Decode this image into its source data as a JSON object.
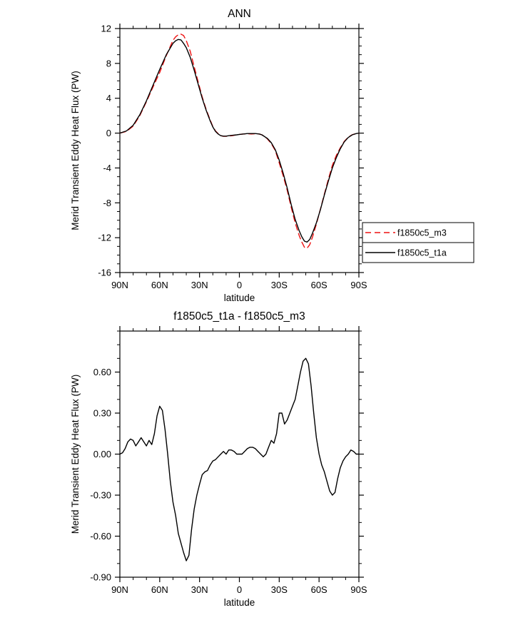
{
  "chart_data": [
    {
      "id": "top-chart",
      "type": "line",
      "title": "ANN",
      "xlabel": "latitude",
      "ylabel": "Merid Transient Eddy Heat Flux (PW)",
      "xlim": [
        90,
        -90
      ],
      "ylim": [
        -16,
        12
      ],
      "xminor_step": 10,
      "yminor_step": 1,
      "grid": false,
      "xticks": [
        {
          "v": 90,
          "label": "90N"
        },
        {
          "v": 60,
          "label": "60N"
        },
        {
          "v": 30,
          "label": "30N"
        },
        {
          "v": 0,
          "label": "0"
        },
        {
          "v": -30,
          "label": "30S"
        },
        {
          "v": -60,
          "label": "60S"
        },
        {
          "v": -90,
          "label": "90S"
        }
      ],
      "yticks": [
        {
          "v": 12,
          "label": "12"
        },
        {
          "v": 8,
          "label": "8"
        },
        {
          "v": 4,
          "label": "4"
        },
        {
          "v": 0,
          "label": "0"
        },
        {
          "v": -4,
          "label": "-4"
        },
        {
          "v": -8,
          "label": "-8"
        },
        {
          "v": -12,
          "label": "-12"
        },
        {
          "v": -16,
          "label": "-16"
        }
      ],
      "series": [
        {
          "name": "f1850c5_m3",
          "color": "#ee1111",
          "dash": "8 5",
          "points": [
            [
              90,
              0.0
            ],
            [
              85,
              0.2
            ],
            [
              80,
              0.8
            ],
            [
              75,
              2.0
            ],
            [
              70,
              3.6
            ],
            [
              65,
              5.3
            ],
            [
              60,
              6.95
            ],
            [
              55,
              8.9
            ],
            [
              50,
              10.65
            ],
            [
              48,
              11.05
            ],
            [
              46,
              11.3
            ],
            [
              44,
              11.35
            ],
            [
              42,
              11.2
            ],
            [
              40,
              10.6
            ],
            [
              37,
              9.4
            ],
            [
              34,
              7.6
            ],
            [
              31,
              5.85
            ],
            [
              28,
              4.15
            ],
            [
              25,
              2.7
            ],
            [
              22,
              1.5
            ],
            [
              20,
              0.75
            ],
            [
              18,
              0.25
            ],
            [
              16,
              -0.05
            ],
            [
              14,
              -0.28
            ],
            [
              12,
              -0.37
            ],
            [
              10,
              -0.37
            ],
            [
              8,
              -0.33
            ],
            [
              5,
              -0.28
            ],
            [
              2,
              -0.2
            ],
            [
              0,
              -0.15
            ],
            [
              -3,
              -0.1
            ],
            [
              -6,
              -0.08
            ],
            [
              -9,
              -0.1
            ],
            [
              -12,
              -0.08
            ],
            [
              -15,
              -0.1
            ],
            [
              -17,
              -0.2
            ],
            [
              -19,
              -0.4
            ],
            [
              -21,
              -0.65
            ],
            [
              -24,
              -1.2
            ],
            [
              -27,
              -2.0
            ],
            [
              -30,
              -3.4
            ],
            [
              -33,
              -4.9
            ],
            [
              -36,
              -6.55
            ],
            [
              -39,
              -8.5
            ],
            [
              -42,
              -10.3
            ],
            [
              -45,
              -11.75
            ],
            [
              -47,
              -12.5
            ],
            [
              -49,
              -13.1
            ],
            [
              -51,
              -13.2
            ],
            [
              -53,
              -12.8
            ],
            [
              -55,
              -11.95
            ],
            [
              -58,
              -10.45
            ],
            [
              -61,
              -8.75
            ],
            [
              -64,
              -7.0
            ],
            [
              -67,
              -5.3
            ],
            [
              -70,
              -3.7
            ],
            [
              -73,
              -2.55
            ],
            [
              -76,
              -1.7
            ],
            [
              -79,
              -0.95
            ],
            [
              -82,
              -0.45
            ],
            [
              -85,
              -0.18
            ],
            [
              -88,
              -0.05
            ],
            [
              -90,
              0.0
            ]
          ]
        },
        {
          "name": "f1850c5_t1a",
          "color": "#000000",
          "dash": "",
          "points": [
            [
              90,
              0.0
            ],
            [
              85,
              0.25
            ],
            [
              80,
              0.9
            ],
            [
              75,
              2.1
            ],
            [
              70,
              3.7
            ],
            [
              65,
              5.5
            ],
            [
              60,
              7.3
            ],
            [
              55,
              9.0
            ],
            [
              50,
              10.3
            ],
            [
              48,
              10.6
            ],
            [
              46,
              10.75
            ],
            [
              44,
              10.7
            ],
            [
              42,
              10.3
            ],
            [
              40,
              9.8
            ],
            [
              37,
              8.7
            ],
            [
              34,
              7.2
            ],
            [
              31,
              5.6
            ],
            [
              28,
              4.0
            ],
            [
              25,
              2.6
            ],
            [
              22,
              1.4
            ],
            [
              20,
              0.7
            ],
            [
              18,
              0.2
            ],
            [
              16,
              -0.1
            ],
            [
              14,
              -0.3
            ],
            [
              12,
              -0.35
            ],
            [
              10,
              -0.35
            ],
            [
              8,
              -0.3
            ],
            [
              5,
              -0.25
            ],
            [
              2,
              -0.2
            ],
            [
              0,
              -0.15
            ],
            [
              -3,
              -0.1
            ],
            [
              -6,
              -0.05
            ],
            [
              -9,
              -0.05
            ],
            [
              -12,
              -0.05
            ],
            [
              -15,
              -0.1
            ],
            [
              -17,
              -0.2
            ],
            [
              -19,
              -0.4
            ],
            [
              -21,
              -0.6
            ],
            [
              -24,
              -1.1
            ],
            [
              -27,
              -1.9
            ],
            [
              -30,
              -3.1
            ],
            [
              -33,
              -4.6
            ],
            [
              -36,
              -6.3
            ],
            [
              -39,
              -8.2
            ],
            [
              -42,
              -9.9
            ],
            [
              -45,
              -11.2
            ],
            [
              -47,
              -11.9
            ],
            [
              -49,
              -12.4
            ],
            [
              -51,
              -12.5
            ],
            [
              -53,
              -12.2
            ],
            [
              -55,
              -11.5
            ],
            [
              -58,
              -10.3
            ],
            [
              -61,
              -8.8
            ],
            [
              -64,
              -7.1
            ],
            [
              -67,
              -5.5
            ],
            [
              -70,
              -4.0
            ],
            [
              -73,
              -2.8
            ],
            [
              -76,
              -1.8
            ],
            [
              -79,
              -1.0
            ],
            [
              -82,
              -0.5
            ],
            [
              -85,
              -0.2
            ],
            [
              -88,
              -0.05
            ],
            [
              -90,
              0.0
            ]
          ]
        }
      ],
      "legend": {
        "position": "right-below",
        "entries": [
          {
            "label": "f1850c5_m3",
            "color": "#ee1111",
            "dash": "8 5"
          },
          {
            "label": "f1850c5_t1a",
            "color": "#000000",
            "dash": ""
          }
        ]
      }
    },
    {
      "id": "bottom-chart",
      "type": "line",
      "title": "f1850c5_t1a - f1850c5_m3",
      "xlabel": "latitude",
      "ylabel": "Merid Transient Eddy Heat Flux (PW)",
      "xlim": [
        90,
        -90
      ],
      "ylim": [
        -0.9,
        0.9
      ],
      "xminor_step": 10,
      "yminor_step": 0.1,
      "grid": false,
      "xticks": [
        {
          "v": 90,
          "label": "90N"
        },
        {
          "v": 60,
          "label": "60N"
        },
        {
          "v": 30,
          "label": "30N"
        },
        {
          "v": 0,
          "label": "0"
        },
        {
          "v": -30,
          "label": "30S"
        },
        {
          "v": -60,
          "label": "60S"
        },
        {
          "v": -90,
          "label": "90S"
        }
      ],
      "yticks": [
        {
          "v": 0.6,
          "label": "0.60"
        },
        {
          "v": 0.3,
          "label": "0.30"
        },
        {
          "v": 0.0,
          "label": "0.00"
        },
        {
          "v": -0.3,
          "label": "-0.30"
        },
        {
          "v": -0.6,
          "label": "-0.60"
        },
        {
          "v": -0.9,
          "label": "-0.90"
        }
      ],
      "series": [
        {
          "name": "f1850c5_t1a - f1850c5_m3",
          "color": "#000000",
          "dash": "",
          "points": [
            [
              90,
              0.0
            ],
            [
              88,
              0.01
            ],
            [
              86,
              0.04
            ],
            [
              84,
              0.09
            ],
            [
              82,
              0.11
            ],
            [
              80,
              0.1
            ],
            [
              78,
              0.06
            ],
            [
              76,
              0.09
            ],
            [
              74,
              0.12
            ],
            [
              72,
              0.09
            ],
            [
              70,
              0.06
            ],
            [
              68,
              0.1
            ],
            [
              66,
              0.07
            ],
            [
              64,
              0.15
            ],
            [
              62,
              0.28
            ],
            [
              60,
              0.35
            ],
            [
              58,
              0.32
            ],
            [
              56,
              0.18
            ],
            [
              54,
              0.0
            ],
            [
              52,
              -0.2
            ],
            [
              50,
              -0.35
            ],
            [
              48,
              -0.45
            ],
            [
              46,
              -0.58
            ],
            [
              44,
              -0.65
            ],
            [
              42,
              -0.72
            ],
            [
              40,
              -0.78
            ],
            [
              38,
              -0.74
            ],
            [
              36,
              -0.55
            ],
            [
              34,
              -0.4
            ],
            [
              32,
              -0.3
            ],
            [
              30,
              -0.22
            ],
            [
              28,
              -0.15
            ],
            [
              26,
              -0.13
            ],
            [
              24,
              -0.12
            ],
            [
              22,
              -0.08
            ],
            [
              20,
              -0.05
            ],
            [
              18,
              -0.04
            ],
            [
              16,
              -0.02
            ],
            [
              14,
              0.0
            ],
            [
              12,
              0.02
            ],
            [
              10,
              0.0
            ],
            [
              8,
              0.03
            ],
            [
              6,
              0.03
            ],
            [
              4,
              0.02
            ],
            [
              2,
              0.0
            ],
            [
              0,
              0.0
            ],
            [
              -2,
              0.0
            ],
            [
              -4,
              0.02
            ],
            [
              -6,
              0.04
            ],
            [
              -8,
              0.05
            ],
            [
              -10,
              0.05
            ],
            [
              -12,
              0.04
            ],
            [
              -14,
              0.02
            ],
            [
              -16,
              0.0
            ],
            [
              -18,
              -0.02
            ],
            [
              -20,
              0.0
            ],
            [
              -22,
              0.05
            ],
            [
              -24,
              0.1
            ],
            [
              -26,
              0.08
            ],
            [
              -28,
              0.15
            ],
            [
              -30,
              0.3
            ],
            [
              -32,
              0.3
            ],
            [
              -34,
              0.22
            ],
            [
              -36,
              0.25
            ],
            [
              -38,
              0.3
            ],
            [
              -40,
              0.35
            ],
            [
              -42,
              0.4
            ],
            [
              -44,
              0.5
            ],
            [
              -46,
              0.6
            ],
            [
              -48,
              0.68
            ],
            [
              -50,
              0.7
            ],
            [
              -52,
              0.66
            ],
            [
              -54,
              0.5
            ],
            [
              -56,
              0.3
            ],
            [
              -58,
              0.12
            ],
            [
              -60,
              0.0
            ],
            [
              -62,
              -0.08
            ],
            [
              -64,
              -0.13
            ],
            [
              -66,
              -0.2
            ],
            [
              -68,
              -0.27
            ],
            [
              -70,
              -0.3
            ],
            [
              -72,
              -0.28
            ],
            [
              -74,
              -0.18
            ],
            [
              -76,
              -0.1
            ],
            [
              -78,
              -0.05
            ],
            [
              -80,
              -0.02
            ],
            [
              -82,
              0.0
            ],
            [
              -84,
              0.03
            ],
            [
              -86,
              0.02
            ],
            [
              -88,
              0.0
            ],
            [
              -90,
              0.0
            ]
          ]
        }
      ]
    }
  ]
}
